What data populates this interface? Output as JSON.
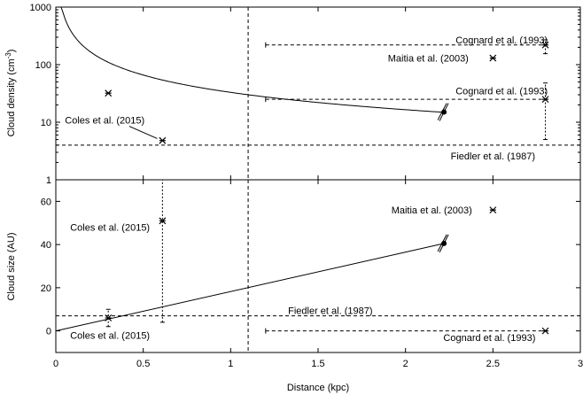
{
  "chart_data": [
    {
      "type": "line",
      "panel": "top",
      "xlim": [
        0,
        3
      ],
      "ylim": [
        1,
        1000
      ],
      "yscale": "log",
      "ylabel": "Cloud density (cm",
      "ylabel_sup": "-3",
      "ylabel_tail": ")",
      "xticks": [
        "0",
        "0.5",
        "1",
        "1.5",
        "2",
        "2.5",
        "3"
      ],
      "yticks": [
        {
          "value": 1,
          "label": "1"
        },
        {
          "value": 10,
          "label": "10"
        },
        {
          "value": 100,
          "label": "100"
        },
        {
          "value": 1000,
          "label": "1000"
        }
      ],
      "curve": {
        "x_start": 0.03,
        "x_end": 2.22,
        "k_pc_per_cm3": 33,
        "note_eq": "n = 33 / d"
      },
      "vline": 1.1,
      "hlines": [
        {
          "y": 4,
          "x_from": 0,
          "x_to": 3
        },
        {
          "y": 25,
          "x_from": 1.2,
          "x_to": 2.8
        },
        {
          "y": 220,
          "x_from": 1.2,
          "x_to": 2.8
        }
      ],
      "points": [
        {
          "x": 0.3,
          "y": 32,
          "marker": "star"
        },
        {
          "x": 0.61,
          "y": 4.8,
          "marker": "star"
        },
        {
          "x": 2.5,
          "y": 130,
          "marker": "star"
        },
        {
          "x": 2.8,
          "y": 220,
          "marker": "star",
          "err": [
            155,
            270
          ]
        },
        {
          "x": 2.8,
          "y": 25,
          "marker": "star",
          "err": [
            5,
            48
          ]
        },
        {
          "x": 2.22,
          "y": 15,
          "marker": "dot"
        }
      ],
      "annotations": [
        {
          "text": "Cognard et al. (1993)",
          "x": 2.55,
          "y": 270
        },
        {
          "text": "Maitia et al. (2003)",
          "x": 2.13,
          "y": 130
        },
        {
          "text": "Cognard et al. (1993)",
          "x": 2.55,
          "y": 35
        },
        {
          "text": "Coles et al. (2015)",
          "x": 0.28,
          "y": 11
        },
        {
          "text": "Fiedler et al. (1987)",
          "x": 2.5,
          "y": 2.6
        }
      ]
    },
    {
      "type": "line",
      "panel": "bottom",
      "xlim": [
        0,
        3
      ],
      "ylim": [
        -10,
        70
      ],
      "xlabel": "Distance (kpc)",
      "ylabel": "Cloud size (AU)",
      "xticks": [
        "0",
        "0.5",
        "1",
        "1.5",
        "2",
        "2.5",
        "3"
      ],
      "yticks": [
        {
          "value": 0,
          "label": "0"
        },
        {
          "value": 20,
          "label": "20"
        },
        {
          "value": 40,
          "label": "40"
        },
        {
          "value": 60,
          "label": "60"
        }
      ],
      "line": {
        "x": [
          0,
          2.22
        ],
        "y": [
          0,
          40.5
        ]
      },
      "vline": 1.1,
      "hlines": [
        {
          "y": 7,
          "x_from": 0,
          "x_to": 3
        },
        {
          "y": 0,
          "x_from": 1.2,
          "x_to": 2.8
        }
      ],
      "points": [
        {
          "x": 0.3,
          "y": 6,
          "marker": "star",
          "err": [
            2,
            10
          ]
        },
        {
          "x": 0.61,
          "y": 51,
          "marker": "star",
          "err": [
            4,
            70
          ]
        },
        {
          "x": 2.5,
          "y": 56,
          "marker": "star"
        },
        {
          "x": 2.8,
          "y": 0,
          "marker": "star"
        },
        {
          "x": 2.22,
          "y": 40.5,
          "marker": "dot"
        }
      ],
      "annotations": [
        {
          "text": "Maitia et al. (2003)",
          "x": 2.15,
          "y": 56
        },
        {
          "text": "Coles et al. (2015)",
          "x": 0.31,
          "y": 48
        },
        {
          "text": "Fiedler et al. (1987)",
          "x": 1.57,
          "y": 9.5
        },
        {
          "text": "Coles et al. (2015)",
          "x": 0.31,
          "y": -2
        },
        {
          "text": "Cognard et al. (1993)",
          "x": 2.48,
          "y": -3
        }
      ]
    }
  ]
}
